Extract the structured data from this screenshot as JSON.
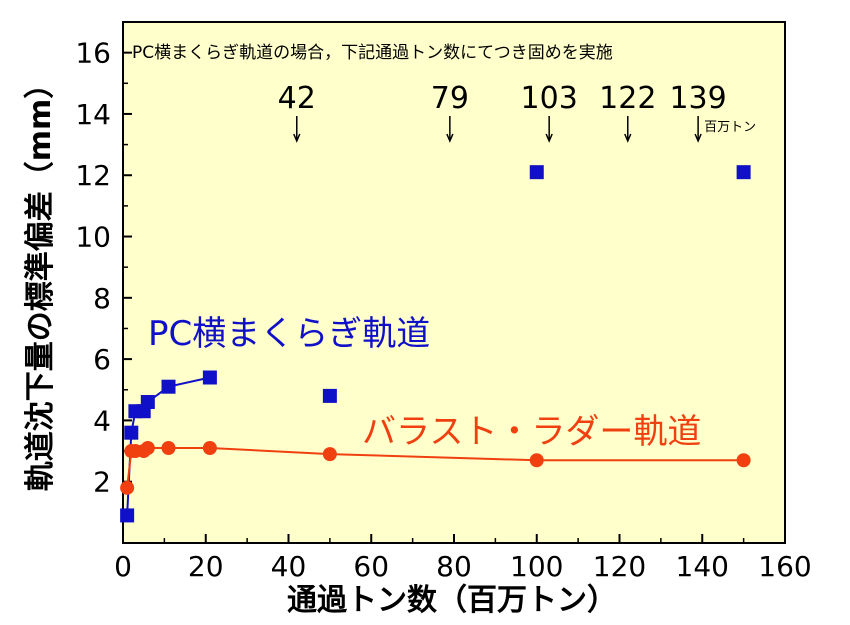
{
  "chart_data": {
    "type": "scatter",
    "xlabel": "通過トン数（百万トン）",
    "ylabel": "軌道沈下量の標準偏差（mm）",
    "xlim": [
      0,
      160
    ],
    "ylim": [
      0,
      17
    ],
    "xticks": [
      "0",
      "20",
      "40",
      "60",
      "80",
      "100",
      "120",
      "140",
      "160"
    ],
    "yticks": [
      "2",
      "4",
      "6",
      "8",
      "10",
      "12",
      "14",
      "16"
    ],
    "grid": false,
    "background_color": "#ffffcc",
    "note": "PC横まくらぎ軌道の場合，下記通過トン数にてつき固めを実施",
    "tamping_markers": {
      "values": [
        42,
        79,
        103,
        122,
        139
      ],
      "labels": [
        "42",
        "79",
        "103",
        "122",
        "139"
      ],
      "unit_label": "百万トン"
    },
    "series": [
      {
        "name": "PC横まくらぎ軌道",
        "color": "#1010c8",
        "marker": "square",
        "points": [
          {
            "x": 1,
            "y": 0.9
          },
          {
            "x": 2,
            "y": 3.6
          },
          {
            "x": 3,
            "y": 4.3
          },
          {
            "x": 5,
            "y": 4.3
          },
          {
            "x": 6,
            "y": 4.6
          },
          {
            "x": 11,
            "y": 5.1
          },
          {
            "x": 21,
            "y": 5.4
          },
          {
            "x": 50,
            "y": 4.8
          },
          {
            "x": 100,
            "y": 12.1
          },
          {
            "x": 150,
            "y": 12.1
          }
        ],
        "line_segments": [
          [
            0,
            6
          ]
        ]
      },
      {
        "name": "バラスト・ラダー軌道",
        "color": "#f04010",
        "marker": "circle",
        "points": [
          {
            "x": 1,
            "y": 1.8
          },
          {
            "x": 2,
            "y": 3.0
          },
          {
            "x": 3,
            "y": 3.0
          },
          {
            "x": 5,
            "y": 3.0
          },
          {
            "x": 6,
            "y": 3.1
          },
          {
            "x": 11,
            "y": 3.1
          },
          {
            "x": 21,
            "y": 3.1
          },
          {
            "x": 50,
            "y": 2.9
          },
          {
            "x": 100,
            "y": 2.7
          },
          {
            "x": 150,
            "y": 2.7
          }
        ],
        "line_segments": [
          [
            0,
            9
          ]
        ]
      }
    ]
  }
}
